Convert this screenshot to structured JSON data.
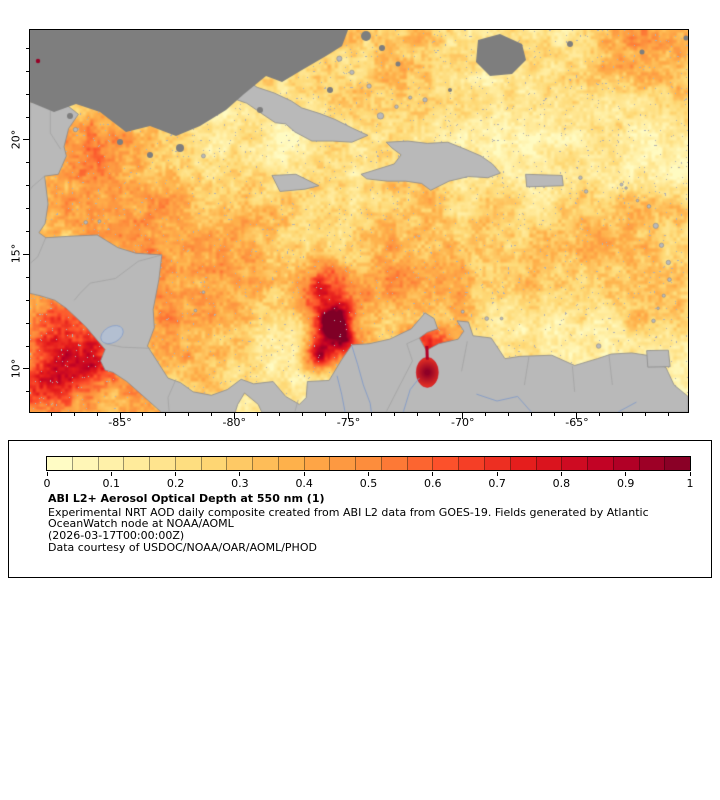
{
  "figure": {
    "background": "#ffffff"
  },
  "map": {
    "extent": {
      "lon_min": -88.94,
      "lon_max": -60.14,
      "lat_min": 8.12,
      "lat_max": 24.8
    },
    "x_ticks": [
      {
        "lon": -85,
        "label": "-85°"
      },
      {
        "lon": -80,
        "label": "-80°"
      },
      {
        "lon": -75,
        "label": "-75°"
      },
      {
        "lon": -70,
        "label": "-70°"
      },
      {
        "lon": -65,
        "label": "-65°"
      }
    ],
    "y_ticks": [
      {
        "lat": 20,
        "label": "20°"
      },
      {
        "lat": 15,
        "label": "15°"
      },
      {
        "lat": 10,
        "label": "10°"
      }
    ],
    "land_color": "#b9b9b9",
    "coast_color": "#8a8a8a",
    "border_line_color": "#9f9f9f",
    "river_color": "#7b97c9",
    "lake_color": "#b3bfd1",
    "missing_color": "#7e7e7e",
    "frame_color": "#000000"
  },
  "colorbar": {
    "min": 0,
    "max": 1,
    "segments": 25,
    "tick_labels": [
      "0",
      "0.1",
      "0.2",
      "0.3",
      "0.4",
      "0.5",
      "0.6",
      "0.7",
      "0.8",
      "0.9",
      "1"
    ],
    "palette_stops": [
      "#ffffcc",
      "#ffeda0",
      "#fed976",
      "#feb24c",
      "#fd8d3c",
      "#fc4e2a",
      "#e31a1c",
      "#bd0026",
      "#800026"
    ]
  },
  "legend": {
    "title": "ABI L2+ Aerosol Optical Depth at 550 nm (1)",
    "description_line1": "Experimental NRT AOD daily composite created from ABI L2 data from GOES-19. Fields generated by Atlantic",
    "description_line2": "OceanWatch node at NOAA/AOML",
    "timestamp": "(2026-03-17T00:00:00Z)",
    "credit": "Data courtesy of USDOC/NOAA/OAR/AOML/PHOD"
  }
}
